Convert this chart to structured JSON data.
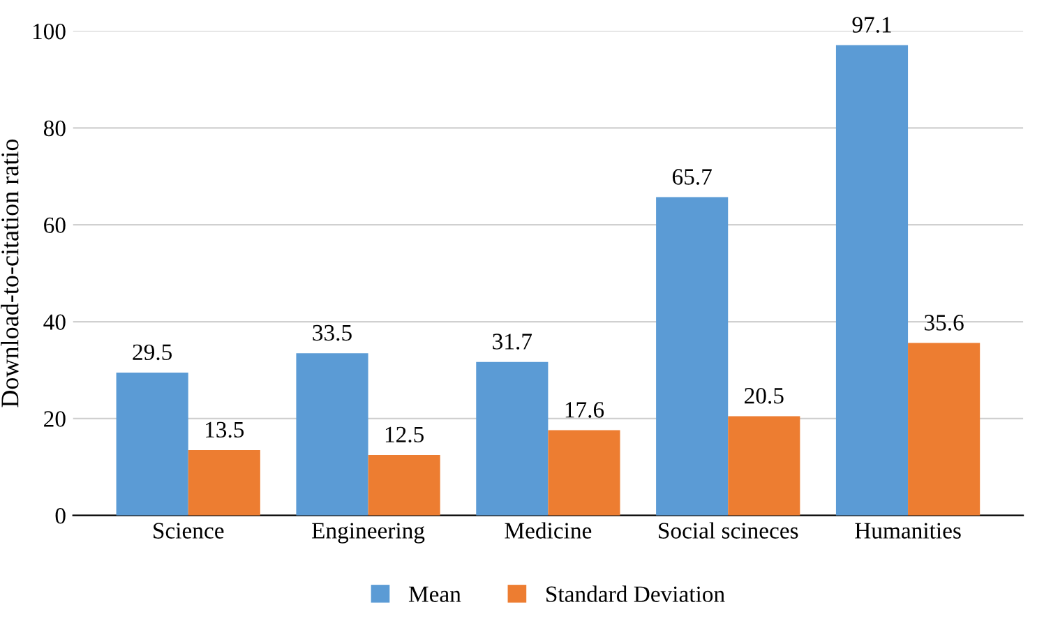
{
  "chart_data": {
    "type": "bar",
    "ylabel": "Download-to-citation ratio",
    "categories": [
      "Science",
      "Engineering",
      "Medicine",
      "Social scineces",
      "Humanities"
    ],
    "series": [
      {
        "name": "Mean",
        "color": "#5b9bd5",
        "values": [
          29.5,
          33.5,
          31.7,
          65.7,
          97.1
        ]
      },
      {
        "name": "Standard Deviation",
        "color": "#ed7d31",
        "values": [
          13.5,
          12.5,
          17.6,
          20.5,
          35.6
        ]
      }
    ],
    "ylim": [
      0,
      100
    ],
    "yticks": [
      0,
      20,
      40,
      60,
      80,
      100
    ],
    "grid": "y",
    "legend": "bottom",
    "data_labels": true
  }
}
